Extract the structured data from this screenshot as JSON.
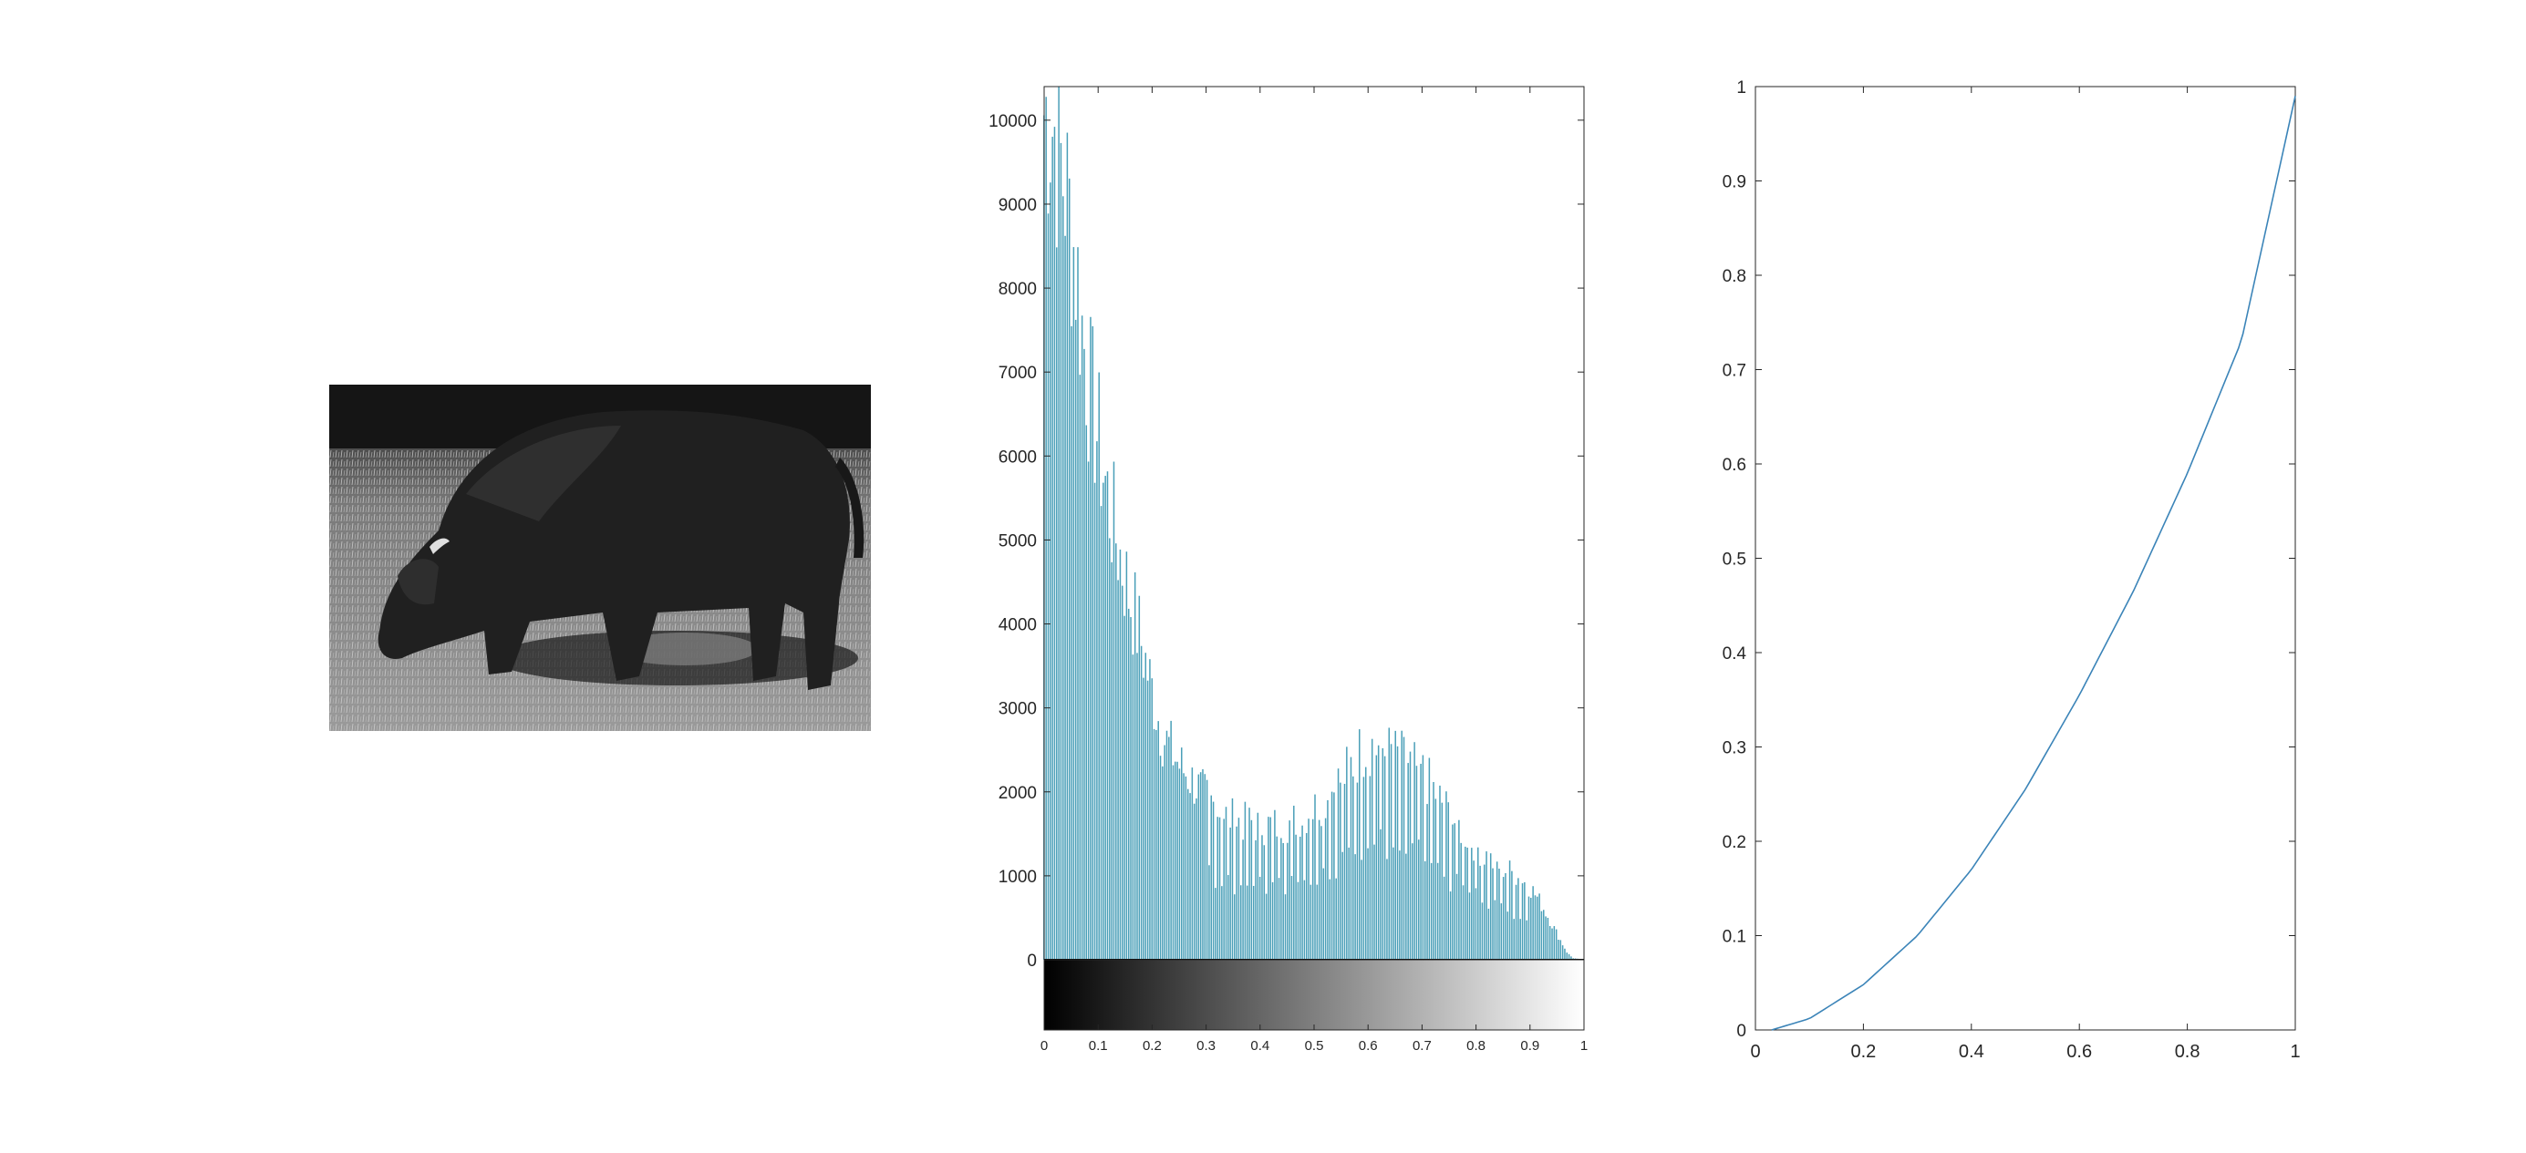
{
  "image_panel": {
    "description_icon": "bison-grayscale-photo-icon"
  },
  "chart_data": [
    {
      "type": "bar",
      "title": "",
      "xlabel": "",
      "ylabel": "",
      "xlim": [
        0,
        1
      ],
      "ylim": [
        0,
        10400
      ],
      "yticks": [
        0,
        1000,
        2000,
        3000,
        4000,
        5000,
        6000,
        7000,
        8000,
        9000,
        10000
      ],
      "xticks": [
        0,
        0.1,
        0.2,
        0.3,
        0.4,
        0.5,
        0.6,
        0.7,
        0.8,
        0.9,
        1
      ],
      "ytick_labels": [
        "0",
        "1000",
        "2000",
        "3000",
        "4000",
        "5000",
        "6000",
        "7000",
        "8000",
        "9000",
        "10000"
      ],
      "xtick_labels": [
        "0",
        "0.1",
        "0.2",
        "0.3",
        "0.4",
        "0.5",
        "0.6",
        "0.7",
        "0.8",
        "0.9",
        "1"
      ],
      "colorbar": "grayscale 0 to 1",
      "bar_color": "#4a9fb8",
      "envelope": {
        "x": [
          0,
          0.01,
          0.02,
          0.03,
          0.04,
          0.05,
          0.06,
          0.07,
          0.08,
          0.1,
          0.12,
          0.15,
          0.18,
          0.2,
          0.22,
          0.25,
          0.28,
          0.3,
          0.33,
          0.36,
          0.4,
          0.43,
          0.46,
          0.5,
          0.53,
          0.56,
          0.58,
          0.6,
          0.62,
          0.65,
          0.68,
          0.7,
          0.73,
          0.76,
          0.8,
          0.83,
          0.86,
          0.88,
          0.9,
          0.92,
          0.94,
          0.96,
          0.97,
          0.98,
          1
        ],
        "y": [
          10400,
          10400,
          10200,
          9800,
          9500,
          9000,
          8500,
          7800,
          7200,
          6400,
          5600,
          4700,
          3900,
          3300,
          2750,
          2400,
          2150,
          2000,
          1800,
          1700,
          1650,
          1650,
          1700,
          1850,
          2050,
          2300,
          2500,
          2650,
          2600,
          2500,
          2400,
          2300,
          2000,
          1700,
          1400,
          1200,
          1100,
          1000,
          900,
          700,
          450,
          200,
          80,
          20,
          0
        ]
      }
    },
    {
      "type": "line",
      "title": "",
      "xlabel": "",
      "ylabel": "",
      "xlim": [
        0,
        1
      ],
      "ylim": [
        0,
        1
      ],
      "xticks": [
        0,
        0.2,
        0.4,
        0.6,
        0.8,
        1
      ],
      "yticks": [
        0,
        0.1,
        0.2,
        0.3,
        0.4,
        0.5,
        0.6,
        0.7,
        0.8,
        0.9,
        1
      ],
      "xtick_labels": [
        "0",
        "0.2",
        "0.4",
        "0.6",
        "0.8",
        "1"
      ],
      "ytick_labels": [
        "0",
        "0.1",
        "0.2",
        "0.3",
        "0.4",
        "0.5",
        "0.6",
        "0.7",
        "0.8",
        "0.9",
        "1"
      ],
      "line_color": "#3b84b8",
      "x": [
        0.03,
        0.1,
        0.2,
        0.3,
        0.4,
        0.5,
        0.6,
        0.7,
        0.8,
        0.9,
        1.0
      ],
      "y": [
        0.0,
        0.012,
        0.048,
        0.1,
        0.17,
        0.255,
        0.355,
        0.465,
        0.59,
        0.73,
        0.99
      ]
    }
  ]
}
